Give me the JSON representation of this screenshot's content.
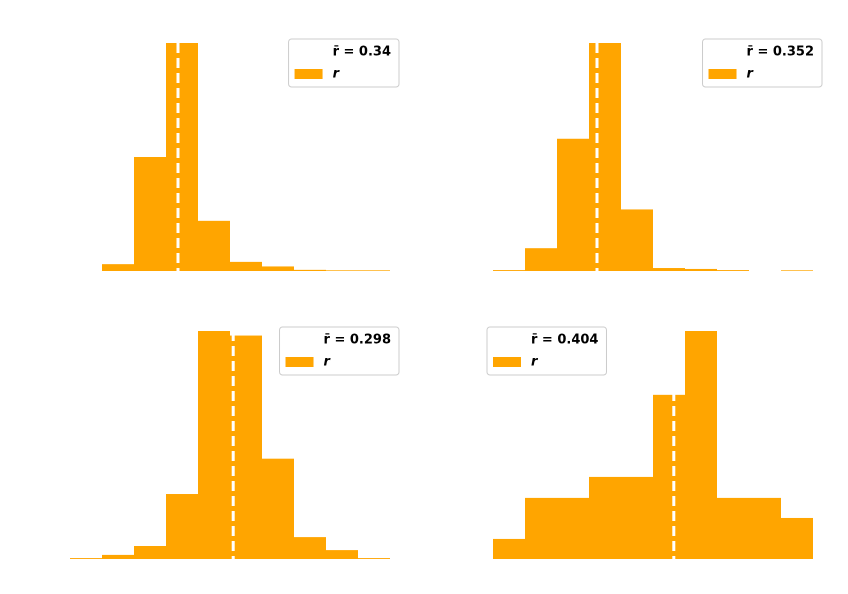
{
  "chart_data": [
    {
      "type": "histogram",
      "bins": [
        0.15,
        0.23,
        0.31,
        0.39,
        0.47,
        0.55,
        0.63,
        0.71,
        0.79,
        0.87
      ],
      "series": [
        {
          "name": "r",
          "color": "#ffa500",
          "values": [
            3,
            50,
            100,
            22,
            4,
            2,
            0.5,
            0.3,
            0.3
          ]
        }
      ],
      "mean_line": {
        "value": 0.34,
        "label": "r̄ = 0.34",
        "color": "#ffffff"
      },
      "xlim": [
        0.07,
        0.87
      ],
      "ylim": [
        0,
        100
      ],
      "legend": "upper right"
    },
    {
      "type": "histogram",
      "bins": [
        0.092,
        0.172,
        0.252,
        0.332,
        0.412,
        0.492,
        0.572,
        0.652,
        0.732,
        0.812,
        0.892
      ],
      "series": [
        {
          "name": "r",
          "color": "#ffa500",
          "values": [
            0.4,
            10,
            58,
            100,
            27,
            1.3,
            0.9,
            0.4,
            0,
            0.3
          ]
        }
      ],
      "mean_line": {
        "value": 0.352,
        "label": "r̄ = 0.352",
        "color": "#ffffff"
      },
      "xlim": [
        0.092,
        0.892
      ],
      "ylim": [
        0,
        100
      ],
      "legend": "upper right"
    },
    {
      "type": "histogram",
      "bins": [
        0.094,
        0.134,
        0.174,
        0.214,
        0.254,
        0.294,
        0.334,
        0.374,
        0.414,
        0.454,
        0.494
      ],
      "series": [
        {
          "name": "r",
          "color": "#ffa500",
          "values": [
            0.4,
            1.8,
            5.7,
            28.5,
            100,
            98,
            44,
            9.6,
            3.9,
            0.4
          ]
        }
      ],
      "mean_line": {
        "value": 0.298,
        "label": "r̄ = 0.298",
        "color": "#ffffff"
      },
      "xlim": [
        0.094,
        0.494
      ],
      "ylim": [
        0,
        100
      ],
      "legend": "upper right"
    },
    {
      "type": "histogram",
      "bins": [
        0.178,
        0.218,
        0.258,
        0.298,
        0.338,
        0.378,
        0.418,
        0.458,
        0.498,
        0.538,
        0.578
      ],
      "series": [
        {
          "name": "r",
          "color": "#ffa500",
          "values": [
            8.8,
            26.8,
            26.8,
            36,
            36,
            72,
            100,
            26.8,
            26.8,
            18
          ]
        }
      ],
      "mean_line": {
        "value": 0.404,
        "label": "r̄ = 0.404",
        "color": "#ffffff"
      },
      "xlim": [
        0.178,
        0.578
      ],
      "ylim": [
        0,
        100
      ],
      "legend": "upper left"
    }
  ]
}
